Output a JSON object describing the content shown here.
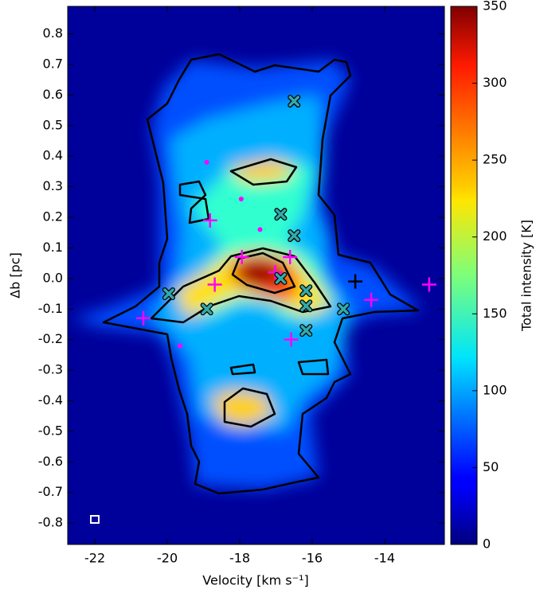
{
  "chart_data": {
    "type": "scatter",
    "x_label": "Velocity [km s⁻¹]",
    "y_label": "Δb [pc]",
    "xlim": [
      -22.75,
      -12.35
    ],
    "ylim": [
      -0.87,
      0.89
    ],
    "xticks": [
      -22,
      -20,
      -18,
      -16,
      -14
    ],
    "yticks": [
      0.8,
      0.7,
      0.6,
      0.5,
      0.4,
      0.3,
      0.2,
      0.1,
      {
        "value": 0,
        "label": "0.0"
      },
      -0.1,
      -0.2,
      -0.3,
      -0.4,
      -0.5,
      -0.6,
      -0.7,
      -0.8
    ],
    "colorbar": {
      "label": "Total intensity [K]",
      "colormap": "jet",
      "lim": [
        0,
        350
      ],
      "ticks": [
        0,
        50,
        100,
        150,
        200,
        250,
        300,
        350
      ]
    },
    "series": [
      {
        "marker": "plus",
        "color": "#ff00ff",
        "x": [
          -20.66,
          -17.94,
          -17.02,
          -16.61,
          -16.58,
          -18.82,
          -18.69,
          -14.37,
          -12.77
        ],
        "values": [
          -0.13,
          0.07,
          0.02,
          0.07,
          -0.2,
          0.19,
          -0.02,
          -0.07,
          -0.02
        ]
      },
      {
        "marker": "plus",
        "color": "#000000",
        "x": [
          -14.81
        ],
        "values": [
          -0.01
        ]
      },
      {
        "marker": "x",
        "color": "#33aaaa",
        "x": [
          -19.96,
          -16.87,
          -18.91,
          -16.17,
          -16.17,
          -16.17,
          -16.5,
          -16.87,
          -15.14,
          -16.5
        ],
        "values": [
          -0.05,
          0.21,
          -0.1,
          -0.04,
          -0.09,
          -0.17,
          0.14,
          0.0,
          -0.1,
          0.58
        ]
      },
      {
        "marker": "dot",
        "color": "#ff00ff",
        "x": [
          -18.91,
          -17.96,
          -17.44,
          -19.65
        ],
        "values": [
          0.38,
          0.26,
          0.16,
          -0.22
        ]
      }
    ]
  }
}
